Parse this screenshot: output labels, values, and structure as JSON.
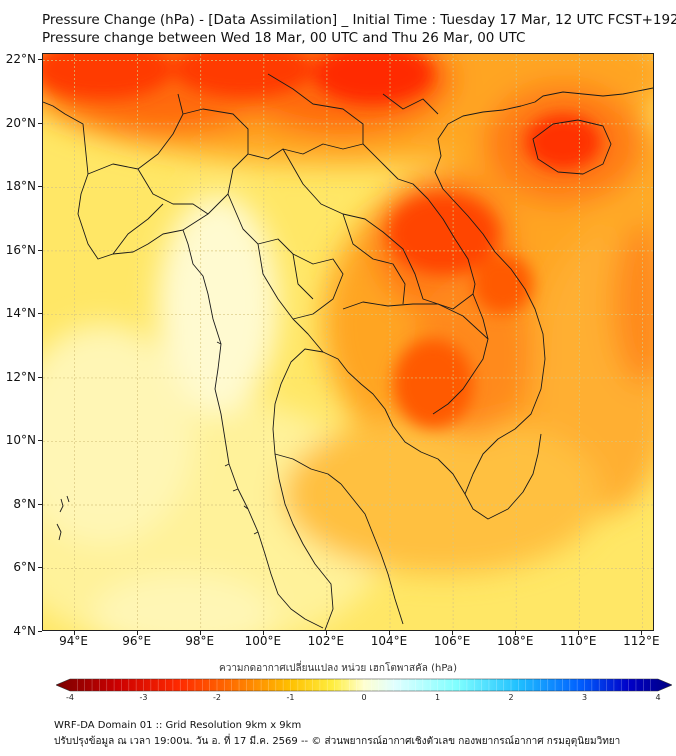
{
  "header": {
    "title_line1": "Pressure Change (hPa) - [Data Assimilation] _ Initial Time : Tuesday 17 Mar, 12 UTC FCST+192",
    "title_line2": "Pressure change between Wed 18 Mar, 00 UTC and Thu 26 Mar, 00 UTC"
  },
  "map": {
    "lat_labels": [
      "22°N",
      "20°N",
      "18°N",
      "16°N",
      "14°N",
      "12°N",
      "10°N",
      "8°N",
      "6°N",
      "4°N"
    ],
    "lat_values": [
      22,
      20,
      18,
      16,
      14,
      12,
      10,
      8,
      6,
      4
    ],
    "lon_labels": [
      "94°E",
      "96°E",
      "98°E",
      "100°E",
      "102°E",
      "104°E",
      "106°E",
      "108°E",
      "110°E",
      "112°E"
    ],
    "lon_values": [
      94,
      96,
      98,
      100,
      102,
      104,
      106,
      108,
      110,
      112
    ],
    "lat_range": [
      4,
      22.2
    ],
    "lon_range": [
      93,
      112.4
    ]
  },
  "colorbar": {
    "title": "ความกดอากาศเปลี่ยนแปลง หน่วย เฮกโตพาสคัล (hPa)",
    "ticks": [
      "-4",
      "-3",
      "-2",
      "-1",
      "0",
      "1",
      "2",
      "3",
      "4"
    ],
    "tick_values": [
      -4,
      -3,
      -2,
      -1,
      0,
      1,
      2,
      3,
      4
    ],
    "range": [
      -4,
      4
    ],
    "colors_negative": [
      "#7a0000",
      "#cc0000",
      "#ff2a00",
      "#ff7a00",
      "#ffc000",
      "#ffee40",
      "#ffffd0"
    ],
    "colors_positive": [
      "#e0ffff",
      "#80ffff",
      "#20c0ff",
      "#0060ff",
      "#0000c8",
      "#000080"
    ]
  },
  "footer": {
    "line1": "WRF-DA Domain 01 :: Grid Resolution 9km x 9km",
    "line2": "ปรับปรุงข้อมูล ณ เวลา 19:00น. วัน อ. ที่ 17 มี.ค. 2569 -- © ส่วนพยากรณ์อากาศเชิงตัวเลข กองพยากรณ์อากาศ กรมอุตุนิยมวิทยา"
  }
}
